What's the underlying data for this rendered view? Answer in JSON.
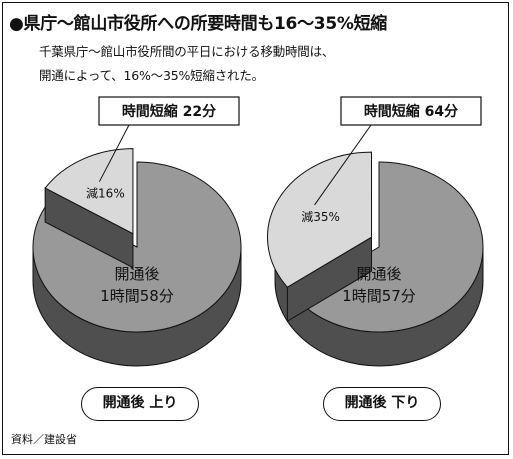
{
  "title": "●県庁〜館山市役所への所要時間も16〜35%短縮",
  "subtitle_line1": "千葉県庁〜館山市役所間の平日における移動時間は、",
  "subtitle_line2": "開通によって、16%〜35%短縮された。",
  "source": "資料／建設省",
  "colors": {
    "after_top": "#999999",
    "after_side": "#4f4f4f",
    "reduction_top": "#d9d9d9",
    "reduction_side": "#4f4f4f",
    "outline": "#111111"
  },
  "chart_data": [
    {
      "type": "pie",
      "label": "開通後 上り",
      "slices": [
        {
          "name": "開通後",
          "label_lines": [
            "開通後",
            "1時間58分"
          ],
          "minutes": 118,
          "percent": 84
        },
        {
          "name": "減",
          "label": "減16%",
          "minutes": 22,
          "percent": 16
        }
      ],
      "callout": "時間短縮 22分"
    },
    {
      "type": "pie",
      "label": "開通後 下り",
      "slices": [
        {
          "name": "開通後",
          "label_lines": [
            "開通後",
            "1時間57分"
          ],
          "minutes": 117,
          "percent": 65
        },
        {
          "name": "減",
          "label": "減35%",
          "minutes": 64,
          "percent": 35
        }
      ],
      "callout": "時間短縮 64分"
    }
  ]
}
